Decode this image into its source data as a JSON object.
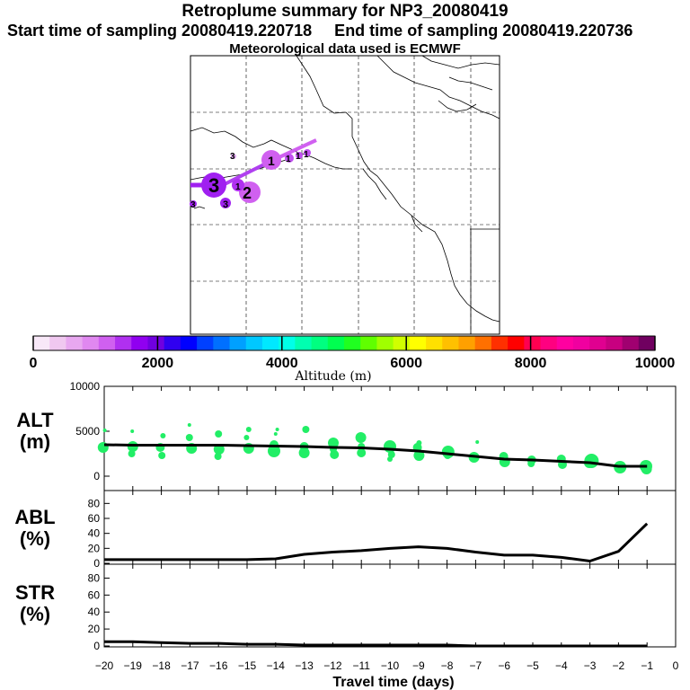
{
  "header": {
    "title": "Retroplume summary for NP3_20080419",
    "sampling_line": "Start time of sampling 20080419.220718     End time of sampling 20080419.220736",
    "met_line": "Meteorological data used is ECMWF"
  },
  "map": {
    "plume_labels": [
      "3",
      "3",
      "2",
      "1",
      "1",
      "1",
      "1",
      "1",
      "3",
      "3"
    ]
  },
  "colorbar": {
    "title": "Altitude (m)",
    "tick_labels": [
      "0",
      "2000",
      "4000",
      "6000",
      "8000",
      "10000"
    ],
    "colors": [
      "#f8e8f8",
      "#f0c8f0",
      "#e8a8f0",
      "#e088f0",
      "#d060f0",
      "#b030f0",
      "#9000f0",
      "#7000e0",
      "#3000f0",
      "#0000ff",
      "#0040ff",
      "#0070ff",
      "#00a0ff",
      "#00c8ff",
      "#00e8ff",
      "#00ffe8",
      "#00ffb0",
      "#00ff80",
      "#00ff50",
      "#20ff20",
      "#60ff00",
      "#a0ff00",
      "#d0ff00",
      "#ffff00",
      "#ffe000",
      "#ffc000",
      "#ffa000",
      "#ff7000",
      "#ff3000",
      "#ff0000",
      "#ff0050",
      "#ff0080",
      "#ff00a0",
      "#f000a0",
      "#e00090",
      "#c80080",
      "#a00070",
      "#700060"
    ]
  },
  "chart_data": [
    {
      "type": "line",
      "name": "ALT",
      "ylabel": "ALT\n(m)",
      "ylabel_top": "ALT",
      "ylabel_bottom": "(m)",
      "ylim": [
        0,
        10000
      ],
      "yticks": [
        "0",
        "5000",
        "10000"
      ],
      "x": [
        -20,
        -19,
        -18,
        -17,
        -16,
        -15,
        -14,
        -13,
        -12,
        -11,
        -10,
        -9,
        -8,
        -7,
        -6,
        -5,
        -4,
        -3,
        -2,
        -1
      ],
      "values": [
        3500,
        3450,
        3450,
        3450,
        3450,
        3400,
        3350,
        3300,
        3200,
        3150,
        3000,
        2800,
        2500,
        2200,
        1900,
        1800,
        1650,
        1500,
        1100,
        1100
      ],
      "scatter": [
        {
          "x": -20,
          "y": 3200,
          "s": 6
        },
        {
          "x": -20,
          "y": 5100,
          "s": 2
        },
        {
          "x": -19,
          "y": 3300,
          "s": 6
        },
        {
          "x": -19,
          "y": 2500,
          "s": 4
        },
        {
          "x": -19,
          "y": 5000,
          "s": 2
        },
        {
          "x": -18,
          "y": 3200,
          "s": 5
        },
        {
          "x": -18,
          "y": 4500,
          "s": 3
        },
        {
          "x": -18,
          "y": 2300,
          "s": 4
        },
        {
          "x": -17,
          "y": 3100,
          "s": 6
        },
        {
          "x": -17,
          "y": 4300,
          "s": 4
        },
        {
          "x": -17,
          "y": 5700,
          "s": 2
        },
        {
          "x": -16,
          "y": 3000,
          "s": 6
        },
        {
          "x": -16,
          "y": 4700,
          "s": 4
        },
        {
          "x": -16,
          "y": 2200,
          "s": 4
        },
        {
          "x": -15,
          "y": 3100,
          "s": 6
        },
        {
          "x": -15,
          "y": 5200,
          "s": 3
        },
        {
          "x": -15,
          "y": 4300,
          "s": 3
        },
        {
          "x": -14,
          "y": 2800,
          "s": 7
        },
        {
          "x": -14,
          "y": 3500,
          "s": 5
        },
        {
          "x": -14,
          "y": 5200,
          "s": 2
        },
        {
          "x": -14,
          "y": 4700,
          "s": 2
        },
        {
          "x": -13,
          "y": 2600,
          "s": 6
        },
        {
          "x": -13,
          "y": 3300,
          "s": 5
        },
        {
          "x": -13,
          "y": 5200,
          "s": 4
        },
        {
          "x": -12,
          "y": 3700,
          "s": 6
        },
        {
          "x": -12,
          "y": 2400,
          "s": 5
        },
        {
          "x": -12,
          "y": 3000,
          "s": 4
        },
        {
          "x": -11,
          "y": 4300,
          "s": 6
        },
        {
          "x": -11,
          "y": 2600,
          "s": 5
        },
        {
          "x": -11,
          "y": 3300,
          "s": 4
        },
        {
          "x": -10,
          "y": 3300,
          "s": 7
        },
        {
          "x": -10,
          "y": 2400,
          "s": 4
        },
        {
          "x": -10,
          "y": 1900,
          "s": 3
        },
        {
          "x": -9,
          "y": 3200,
          "s": 5
        },
        {
          "x": -9,
          "y": 2300,
          "s": 6
        },
        {
          "x": -9,
          "y": 3700,
          "s": 3
        },
        {
          "x": -8,
          "y": 2700,
          "s": 7
        },
        {
          "x": -8,
          "y": 2300,
          "s": 4
        },
        {
          "x": -7,
          "y": 2100,
          "s": 6
        },
        {
          "x": -7,
          "y": 3800,
          "s": 2
        },
        {
          "x": -6,
          "y": 2200,
          "s": 5
        },
        {
          "x": -6,
          "y": 1600,
          "s": 6
        },
        {
          "x": -5,
          "y": 1800,
          "s": 5
        },
        {
          "x": -5,
          "y": 1400,
          "s": 4
        },
        {
          "x": -4,
          "y": 1900,
          "s": 5
        },
        {
          "x": -4,
          "y": 1300,
          "s": 5
        },
        {
          "x": -3,
          "y": 1700,
          "s": 8
        },
        {
          "x": -3,
          "y": 1500,
          "s": 6
        },
        {
          "x": -2,
          "y": 1000,
          "s": 7
        },
        {
          "x": -1,
          "y": 1100,
          "s": 7
        },
        {
          "x": -1,
          "y": 800,
          "s": 6
        }
      ],
      "scatter_color": "#22ee66"
    },
    {
      "type": "line",
      "name": "ABL",
      "ylabel_top": "ABL",
      "ylabel_bottom": "(%)",
      "ylim": [
        0,
        90
      ],
      "yticks": [
        "0",
        "20",
        "40",
        "60",
        "80"
      ],
      "x": [
        -20,
        -19,
        -18,
        -17,
        -16,
        -15,
        -14,
        -13,
        -12,
        -11,
        -10,
        -9,
        -8,
        -7,
        -6,
        -5,
        -4,
        -3,
        -2,
        -1
      ],
      "values": [
        5,
        5,
        5,
        5,
        5,
        5,
        6,
        12,
        15,
        17,
        20,
        22,
        20,
        15,
        11,
        11,
        8,
        3,
        16,
        53
      ]
    },
    {
      "type": "line",
      "name": "STR",
      "ylabel_top": "STR",
      "ylabel_bottom": "(%)",
      "ylim": [
        0,
        90
      ],
      "yticks": [
        "0",
        "20",
        "40",
        "60",
        "80"
      ],
      "x": [
        -20,
        -19,
        -18,
        -17,
        -16,
        -15,
        -14,
        -13,
        -12,
        -11,
        -10,
        -9,
        -8,
        -7,
        -6,
        -5,
        -4,
        -3,
        -2,
        -1
      ],
      "values": [
        5,
        5,
        4,
        3,
        3,
        2,
        2,
        1,
        1,
        1,
        1,
        1,
        1,
        0,
        0,
        0,
        0,
        0,
        0,
        0
      ]
    }
  ],
  "xaxis": {
    "label": "Travel time (days)",
    "ticks": [
      -20,
      -19,
      -18,
      -17,
      -16,
      -15,
      -14,
      -13,
      -12,
      -11,
      -10,
      -9,
      -8,
      -7,
      -6,
      -5,
      -4,
      -3,
      -2,
      -1,
      0
    ]
  }
}
